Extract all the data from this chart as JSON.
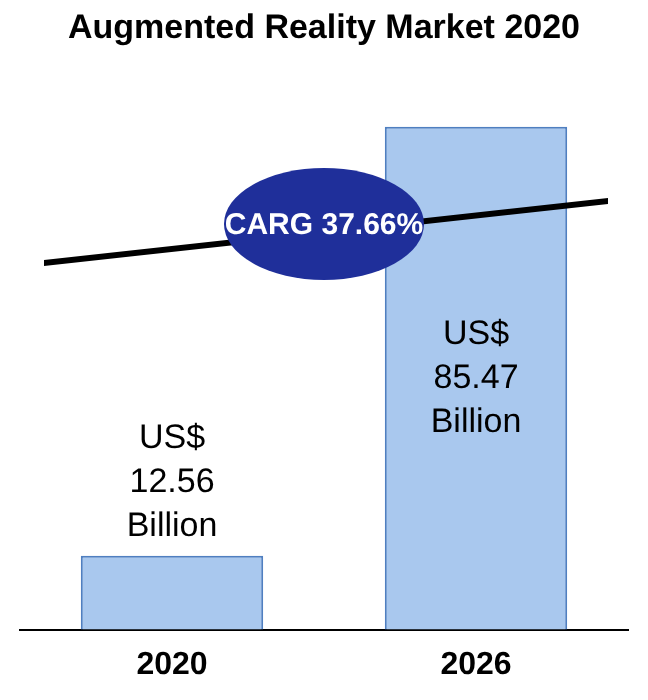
{
  "chart_data": {
    "type": "bar",
    "title": "Augmented Reality Market 2020",
    "categories": [
      "2020",
      "2026"
    ],
    "values": [
      12.56,
      85.47
    ],
    "value_labels": [
      "US$ 12.56 Billion",
      "US$ 85.47 Billion"
    ],
    "color": "#a9c8ee",
    "annotations": [
      "CARG 37.66%"
    ],
    "legend": false,
    "grid": false
  }
}
